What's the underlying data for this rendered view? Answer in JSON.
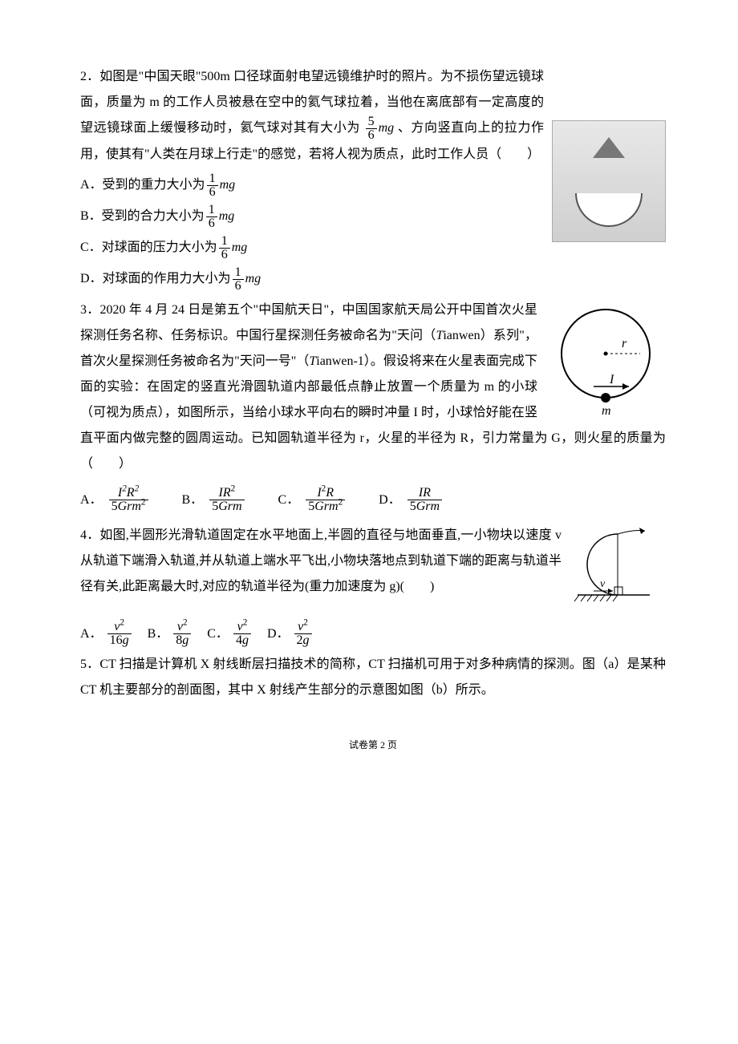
{
  "q2": {
    "number": "2．",
    "text_before_frac": "如图是\"中国天眼\"500m 口径球面射电望远镜维护时的照片。为不损伤望远镜球面，质量为 m 的工作人员被悬在空中的氦气球拉着，当他在离底部有一定高度的望远镜球面上缓慢移动时，氦气球对其有大小为",
    "frac_num": "5",
    "frac_den": "6",
    "frac_var": "mg",
    "text_after_frac": "、方向竖直向上的拉力作用，使其有\"人类在月球上行走\"的感觉，若将人视为质点，此时工作人员（　　）",
    "options": {
      "A_label": "A．受到的重力大小为",
      "B_label": "B．受到的合力大小为",
      "C_label": "C．对球面的压力大小为",
      "D_label": "D．对球面的作用力大小为",
      "opt_frac_num": "1",
      "opt_frac_den": "6",
      "opt_var": "mg"
    }
  },
  "q3": {
    "number": "3．",
    "text": "2020 年 4 月 24 日是第五个\"中国航天日\"，中国国家航天局公开中国首次火星探测任务名称、任务标识。中国行星探测任务被命名为\"天问（Tianwen）系列\"，首次火星探测任务被命名为\"天问一号\"（Tianwen-1）。假设将来在火星表面完成下面的实验：在固定的竖直光滑圆轨道内部最低点静止放置一个质量为 m 的小球（可视为质点），如图所示，当给小球水平向右的瞬时冲量 I 时，小球恰好能在竖直平面内做完整的圆周运动。已知圆轨道半径为 r，火星的半径为 R，引力常量为 G，则火星的质量为（　　）",
    "fig": {
      "r_label": "r",
      "I_label": "I",
      "m_label": "m"
    },
    "options": {
      "A": "A．",
      "B": "B．",
      "C": "C．",
      "D": "D．",
      "A_num": "I²R²",
      "A_den": "5Grm²",
      "B_num": "IR²",
      "B_den": "5Grm",
      "C_num": "I²R",
      "C_den": "5Grm²",
      "D_num": "IR",
      "D_den": "5Grm"
    }
  },
  "q4": {
    "number": "4．",
    "text": "如图,半圆形光滑轨道固定在水平地面上,半圆的直径与地面垂直,一小物块以速度 v 从轨道下端滑入轨道,并从轨道上端水平飞出,小物块落地点到轨道下端的距离与轨道半径有关,此距离最大时,对应的轨道半径为(重力加速度为 g)(　　)",
    "fig": {
      "v_label": "v"
    },
    "options": {
      "A": "A．",
      "B": "B．",
      "C": "C．",
      "D": "D．",
      "num": "v²",
      "A_den": "16g",
      "B_den": "8g",
      "C_den": "4g",
      "D_den": "2g"
    }
  },
  "q5": {
    "number": "5．",
    "text": "CT 扫描是计算机 X 射线断层扫描技术的简称，CT 扫描机可用于对多种病情的探测。图（a）是某种 CT 机主要部分的剖面图，其中 X 射线产生部分的示意图如图（b）所示。"
  },
  "footer": "试卷第 2 页"
}
